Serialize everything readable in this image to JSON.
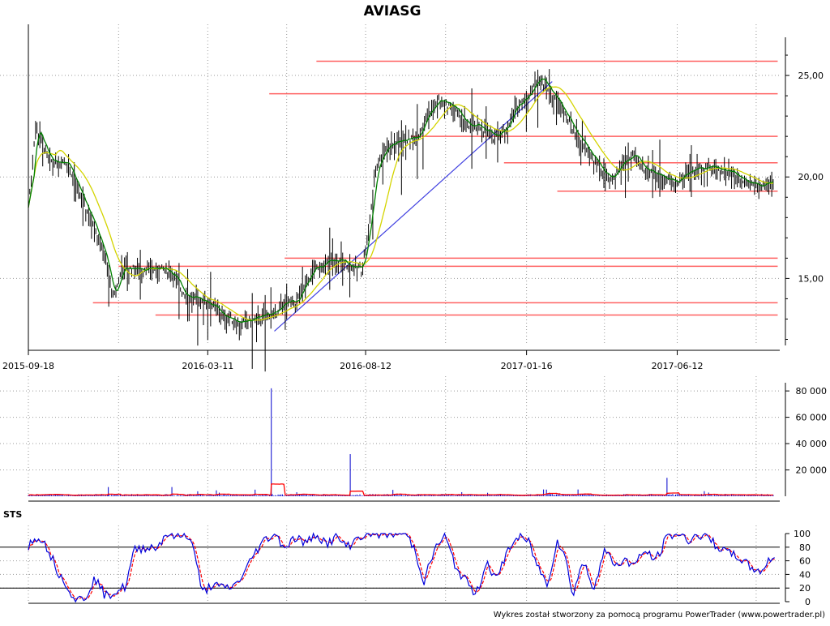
{
  "chart_data": {
    "title": "AVIASG",
    "footer": "Wykres został stworzony za pomocą programu PowerTrader (www.powertrader.pl)",
    "date_labels": [
      "2015-09-18",
      "2016-03-11",
      "2016-08-12",
      "2017-01-16",
      "2017-06-12"
    ],
    "price_panel": {
      "type": "bar",
      "ylim": [
        11.7,
        26.8
      ],
      "y_ticks": [
        15,
        20,
        25
      ],
      "y_tick_labels": [
        "15,00",
        "20,00",
        "25,00"
      ],
      "colors": {
        "bars": "#000000",
        "ma_short": "#008000",
        "ma_long": "#d4d400",
        "levels": "#ff6060",
        "trend": "#4040e0"
      },
      "horizontal_levels": [
        {
          "value": 25.7,
          "from": "2016-06-25",
          "to": "2017-09-18"
        },
        {
          "value": 24.1,
          "from": "2016-05-10",
          "to": "2017-09-18"
        },
        {
          "value": 22.0,
          "from": "2016-09-25",
          "to": "2017-09-18"
        },
        {
          "value": 20.7,
          "from": "2016-12-25",
          "to": "2017-09-18"
        },
        {
          "value": 19.3,
          "from": "2017-02-15",
          "to": "2017-09-18"
        },
        {
          "value": 16.0,
          "from": "2016-05-25",
          "to": "2017-09-18"
        },
        {
          "value": 15.6,
          "from": "2015-12-15",
          "to": "2017-09-18"
        },
        {
          "value": 13.8,
          "from": "2015-11-20",
          "to": "2017-09-18"
        },
        {
          "value": 13.2,
          "from": "2016-01-20",
          "to": "2017-09-18"
        }
      ],
      "trend_line": {
        "start": [
          "2016-05-15",
          12.4
        ],
        "end": [
          "2017-02-10",
          24.7
        ]
      },
      "price_path": [
        [
          "2015-09-18",
          18.5
        ],
        [
          "2015-09-25",
          22.5
        ],
        [
          "2015-10-01",
          21.8
        ],
        [
          "2015-10-08",
          20.8
        ],
        [
          "2015-10-20",
          20.8
        ],
        [
          "2015-10-26",
          20.8
        ],
        [
          "2015-11-02",
          19.8
        ],
        [
          "2015-11-12",
          18.6
        ],
        [
          "2015-11-22",
          17.6
        ],
        [
          "2015-12-02",
          16.0
        ],
        [
          "2015-12-10",
          14.0
        ],
        [
          "2015-12-18",
          15.5
        ],
        [
          "2015-12-28",
          15.5
        ],
        [
          "2016-01-10",
          15.5
        ],
        [
          "2016-01-25",
          15.5
        ],
        [
          "2016-02-05",
          15.3
        ],
        [
          "2016-02-15",
          14.4
        ],
        [
          "2016-02-25",
          14.0
        ],
        [
          "2016-03-05",
          14.0
        ],
        [
          "2016-03-15",
          13.7
        ],
        [
          "2016-03-25",
          13.2
        ],
        [
          "2016-04-05",
          13.0
        ],
        [
          "2016-04-15",
          12.8
        ],
        [
          "2016-04-25",
          13.0
        ],
        [
          "2016-05-05",
          13.2
        ],
        [
          "2016-05-15",
          13.3
        ],
        [
          "2016-05-25",
          13.8
        ],
        [
          "2016-06-05",
          13.8
        ],
        [
          "2016-06-12",
          14.5
        ],
        [
          "2016-06-22",
          15.5
        ],
        [
          "2016-07-05",
          15.8
        ],
        [
          "2016-07-18",
          15.9
        ],
        [
          "2016-07-30",
          15.6
        ],
        [
          "2016-08-08",
          15.5
        ],
        [
          "2016-08-15",
          17.5
        ],
        [
          "2016-08-22",
          20.5
        ],
        [
          "2016-09-01",
          21.5
        ],
        [
          "2016-09-15",
          21.8
        ],
        [
          "2016-10-01",
          22.0
        ],
        [
          "2016-10-10",
          23.0
        ],
        [
          "2016-10-22",
          23.8
        ],
        [
          "2016-11-05",
          23.5
        ],
        [
          "2016-11-20",
          22.5
        ],
        [
          "2016-12-01",
          22.5
        ],
        [
          "2016-12-15",
          22.0
        ],
        [
          "2016-12-28",
          22.5
        ],
        [
          "2017-01-05",
          23.5
        ],
        [
          "2017-01-20",
          24.2
        ],
        [
          "2017-01-28",
          25.0
        ],
        [
          "2017-02-05",
          24.5
        ],
        [
          "2017-02-18",
          23.5
        ],
        [
          "2017-03-01",
          22.5
        ],
        [
          "2017-03-15",
          21.5
        ],
        [
          "2017-03-28",
          20.5
        ],
        [
          "2017-04-08",
          19.8
        ],
        [
          "2017-04-20",
          20.8
        ],
        [
          "2017-05-01",
          21.0
        ],
        [
          "2017-05-10",
          20.5
        ],
        [
          "2017-05-22",
          20.2
        ],
        [
          "2017-06-01",
          20.0
        ],
        [
          "2017-06-10",
          19.7
        ],
        [
          "2017-06-20",
          20.2
        ],
        [
          "2017-07-05",
          20.5
        ],
        [
          "2017-07-20",
          20.5
        ],
        [
          "2017-08-05",
          20.2
        ],
        [
          "2017-08-20",
          19.8
        ],
        [
          "2017-09-05",
          19.6
        ],
        [
          "2017-09-15",
          19.9
        ]
      ]
    },
    "volume_panel": {
      "type": "bar",
      "ylim": [
        0,
        85000
      ],
      "y_ticks": [
        20000,
        40000,
        60000,
        80000
      ],
      "y_tick_labels": [
        "20 000",
        "40 000",
        "60 000",
        "80 000"
      ],
      "colors": {
        "bars": "#0000cc",
        "ma": "#ff0000"
      },
      "spikes": [
        [
          "2015-12-05",
          7000
        ],
        [
          "2016-02-05",
          7000
        ],
        [
          "2016-05-12",
          82000
        ],
        [
          "2016-07-28",
          32000
        ],
        [
          "2017-06-02",
          14000
        ]
      ]
    },
    "sts_panel": {
      "type": "line",
      "label": "STS",
      "ylim": [
        0,
        100
      ],
      "y_ticks": [
        0,
        20,
        40,
        60,
        80,
        100
      ],
      "y_tick_labels": [
        "0",
        "20",
        "40",
        "60",
        "80",
        "100"
      ],
      "reference_lines": [
        20,
        80
      ],
      "colors": {
        "fast": "#0000dd",
        "slow": "#ff0000"
      },
      "path": [
        [
          "2015-09-18",
          82
        ],
        [
          "2015-09-28",
          98
        ],
        [
          "2015-10-08",
          75
        ],
        [
          "2015-10-18",
          40
        ],
        [
          "2015-10-26",
          25
        ],
        [
          "2015-11-02",
          2
        ],
        [
          "2015-11-12",
          5
        ],
        [
          "2015-11-22",
          35
        ],
        [
          "2015-12-02",
          8
        ],
        [
          "2015-12-12",
          15
        ],
        [
          "2015-12-22",
          22
        ],
        [
          "2015-12-30",
          75
        ],
        [
          "2016-01-10",
          80
        ],
        [
          "2016-01-22",
          80
        ],
        [
          "2016-01-30",
          100
        ],
        [
          "2016-02-10",
          95
        ],
        [
          "2016-02-20",
          100
        ],
        [
          "2016-02-28",
          70
        ],
        [
          "2016-03-05",
          12
        ],
        [
          "2016-03-15",
          25
        ],
        [
          "2016-03-25",
          20
        ],
        [
          "2016-04-05",
          22
        ],
        [
          "2016-04-15",
          40
        ],
        [
          "2016-04-25",
          70
        ],
        [
          "2016-05-05",
          90
        ],
        [
          "2016-05-15",
          100
        ],
        [
          "2016-05-25",
          80
        ],
        [
          "2016-06-05",
          95
        ],
        [
          "2016-06-15",
          85
        ],
        [
          "2016-06-25",
          100
        ],
        [
          "2016-07-05",
          85
        ],
        [
          "2016-07-15",
          95
        ],
        [
          "2016-07-25",
          80
        ],
        [
          "2016-08-05",
          95
        ],
        [
          "2016-08-15",
          100
        ],
        [
          "2016-09-05",
          100
        ],
        [
          "2016-09-20",
          100
        ],
        [
          "2016-09-28",
          80
        ],
        [
          "2016-10-08",
          30
        ],
        [
          "2016-10-18",
          75
        ],
        [
          "2016-10-28",
          98
        ],
        [
          "2016-11-08",
          50
        ],
        [
          "2016-11-18",
          30
        ],
        [
          "2016-11-28",
          10
        ],
        [
          "2016-12-08",
          60
        ],
        [
          "2016-12-18",
          30
        ],
        [
          "2016-12-28",
          75
        ],
        [
          "2017-01-08",
          95
        ],
        [
          "2017-01-18",
          88
        ],
        [
          "2017-01-26",
          55
        ],
        [
          "2017-02-05",
          25
        ],
        [
          "2017-02-15",
          90
        ],
        [
          "2017-02-22",
          70
        ],
        [
          "2017-03-02",
          10
        ],
        [
          "2017-03-12",
          60
        ],
        [
          "2017-03-22",
          20
        ],
        [
          "2017-04-02",
          75
        ],
        [
          "2017-04-12",
          55
        ],
        [
          "2017-04-22",
          60
        ],
        [
          "2017-05-02",
          55
        ],
        [
          "2017-05-12",
          75
        ],
        [
          "2017-05-22",
          60
        ],
        [
          "2017-06-02",
          95
        ],
        [
          "2017-06-12",
          100
        ],
        [
          "2017-06-22",
          90
        ],
        [
          "2017-07-02",
          98
        ],
        [
          "2017-07-12",
          95
        ],
        [
          "2017-07-22",
          80
        ],
        [
          "2017-08-02",
          70
        ],
        [
          "2017-08-12",
          65
        ],
        [
          "2017-08-22",
          50
        ],
        [
          "2017-09-02",
          45
        ],
        [
          "2017-09-15",
          70
        ]
      ]
    }
  }
}
